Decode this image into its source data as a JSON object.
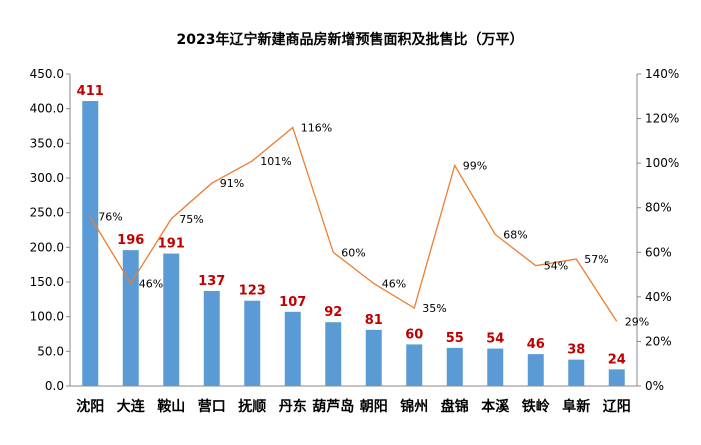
{
  "chart_data": {
    "type": "bar+line",
    "title": "2023年辽宁新建商品房新增预售面积及批售比（万平）",
    "categories": [
      "沈阳",
      "大连",
      "鞍山",
      "营口",
      "抚顺",
      "丹东",
      "葫芦岛",
      "朝阳",
      "锦州",
      "盘锦",
      "本溪",
      "铁岭",
      "阜新",
      "辽阳"
    ],
    "series": [
      {
        "type": "bar",
        "axis": "left",
        "color": "#5B9BD5",
        "label_color": "#C00000",
        "values": [
          411,
          196,
          191,
          137,
          123,
          107,
          92,
          81,
          60,
          55,
          54,
          46,
          38,
          24
        ]
      },
      {
        "type": "line",
        "axis": "right",
        "color": "#ED7D31",
        "values": [
          76,
          46,
          75,
          91,
          101,
          116,
          60,
          46,
          35,
          99,
          68,
          54,
          57,
          29
        ]
      }
    ],
    "left_axis": {
      "ylim": [
        0,
        450
      ],
      "ticks": [
        "0.0",
        "50.0",
        "100.0",
        "150.0",
        "200.0",
        "250.0",
        "300.0",
        "350.0",
        "400.0",
        "450.0"
      ]
    },
    "right_axis": {
      "ylim": [
        0,
        140
      ],
      "unit": "%",
      "ticks": [
        "0%",
        "20%",
        "40%",
        "60%",
        "80%",
        "100%",
        "120%",
        "140%"
      ]
    },
    "grid": false
  }
}
